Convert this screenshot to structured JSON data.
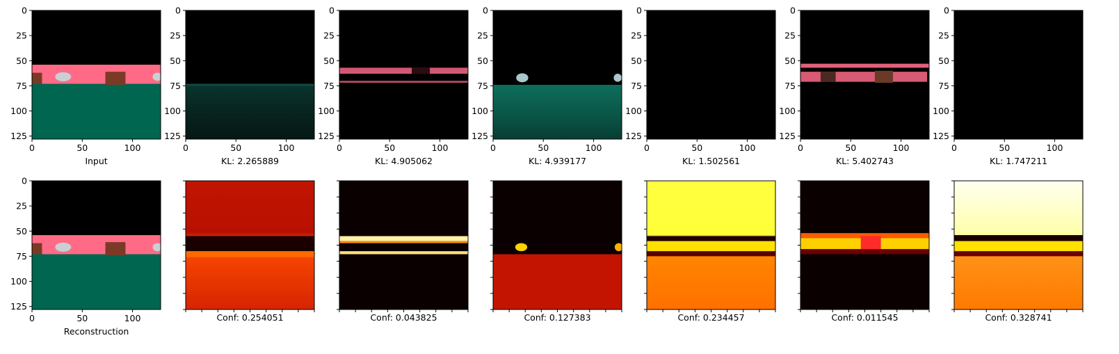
{
  "chart_data": {
    "type": "image-grid",
    "x_ticks": [
      "0",
      "50",
      "100"
    ],
    "y_ticks": [
      "0",
      "25",
      "50",
      "75",
      "100",
      "125"
    ],
    "image_range": [
      0,
      128
    ],
    "rows": [
      {
        "panels": [
          {
            "caption": "Input",
            "kind": "scene"
          },
          {
            "caption": "KL: 2.265889",
            "kind": "rgb-green-faint",
            "kl": 2.265889
          },
          {
            "caption": "KL: 4.905062",
            "kind": "rgb-pink-bands",
            "kl": 4.905062
          },
          {
            "caption": "KL: 4.939177",
            "kind": "rgb-green-cars",
            "kl": 4.939177
          },
          {
            "caption": "KL: 1.502561",
            "kind": "rgb-black",
            "kl": 1.502561
          },
          {
            "caption": "KL: 5.402743",
            "kind": "rgb-pink-boxes",
            "kl": 5.402743
          },
          {
            "caption": "KL: 1.747211",
            "kind": "rgb-black",
            "kl": 1.747211
          }
        ]
      },
      {
        "panels": [
          {
            "caption": "Reconstruction",
            "kind": "scene"
          },
          {
            "caption": "Conf: 0.254051",
            "kind": "heat-red",
            "conf": 0.254051
          },
          {
            "caption": "Conf: 0.043825",
            "kind": "heat-dark-band",
            "conf": 0.043825
          },
          {
            "caption": "Conf: 0.127383",
            "kind": "heat-bottom-red",
            "conf": 0.127383
          },
          {
            "caption": "Conf: 0.234457",
            "kind": "heat-yellow-top",
            "conf": 0.234457
          },
          {
            "caption": "Conf: 0.011545",
            "kind": "heat-dark-hot-band",
            "conf": 0.011545
          },
          {
            "caption": "Conf: 0.328741",
            "kind": "heat-white-top",
            "conf": 0.328741
          }
        ]
      }
    ],
    "colors": {
      "sky": "#000000",
      "road": "#ff6b86",
      "ground": "#00664f",
      "box": "#7a3a26",
      "car": "#c8d0d4"
    }
  }
}
